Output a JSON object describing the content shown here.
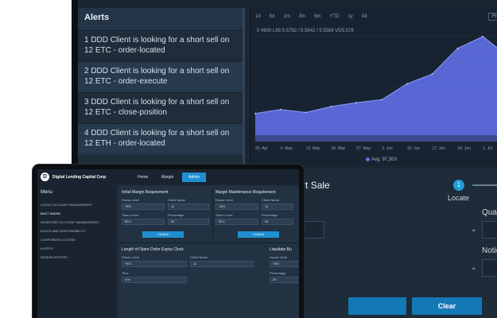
{
  "alerts": {
    "title": "Alerts",
    "items": [
      {
        "label": "1 DDD Client is looking for a short sell on 12 ETC - order-located"
      },
      {
        "label": "2 DDD Client is looking for a short sell on 12 ETC - order-execute"
      },
      {
        "label": "3 DDD Client is looking for a short sell on 12 ETC - close-position"
      },
      {
        "label": "4 DDD Client is looking for a short sell on 12 ETH - order-located"
      }
    ]
  },
  "chart": {
    "ranges": [
      "1d",
      "5d",
      "1m",
      "3m",
      "6m",
      "YTD",
      "1y",
      "All"
    ],
    "range_box": "From",
    "price_line": "0 4800 L98 5.5782 / 5.5642 / 5.5584 VD5.578",
    "legend": "Avg. 97,303",
    "x_ticks": [
      "25. Apr",
      "6. May",
      "13. May",
      "20. May",
      "27. May",
      "3. Jun",
      "10. Jun",
      "17. Jun",
      "24. Jun",
      "1. Jul",
      "8."
    ],
    "series_color": "#5f6fe6"
  },
  "chart_data": {
    "type": "area",
    "x": [
      "25. Apr",
      "6. May",
      "13. May",
      "20. May",
      "27. May",
      "3. Jun",
      "10. Jun",
      "17. Jun",
      "24. Jun",
      "1. Jul",
      "8."
    ],
    "series": [
      {
        "values": [
          22,
          26,
          23,
          29,
          33,
          36,
          52,
          62,
          88,
          100,
          80
        ]
      }
    ]
  },
  "execute": {
    "title": "Execute Short Sale",
    "step_number": "1",
    "step_label": "Locate",
    "quantity_label": "Quantity",
    "notional_label": "Notional",
    "execute_label": "",
    "clear_label": "Clear"
  },
  "laptop": {
    "logo_letter": "D",
    "brand": "Digital Lending Capital Corp",
    "tabs": [
      "Home",
      "Margin",
      "Admin"
    ],
    "menu_title": "Menu",
    "menu_items": [
      "CLIENT ACCOUNT MANAGEMENT",
      "BUCT ADMIN",
      "INVENTORY ACCOUNT MANAGEMENT",
      "ROLES AND RESPONSIBILITY",
      "CORPORATE ACTIONS",
      "ALERTS",
      "DESIGN HISTORY"
    ],
    "initial_margin": {
      "title": "Initial Margin Requirement",
      "house_level_label": "House Level",
      "house_level_value": "YES",
      "client_name_label": "Client Name",
      "client_name_value": "JJ",
      "token_level_label": "Token Level",
      "token_level_value": "BTC",
      "percentage_label": "Percentage",
      "percentage_value": "20",
      "confirm_label": "Confirm"
    },
    "maintenance_margin": {
      "title": "Margin Maintenance Requirement",
      "house_level_label": "House Level",
      "house_level_value": "YES",
      "client_name_label": "Client Name",
      "client_name_value": "JJ",
      "token_level_label": "Token Level",
      "token_level_value": "BTC",
      "percentage_label": "Percentage",
      "percentage_value": "30",
      "confirm_label": "Confirm"
    },
    "open_order": {
      "title": "Length of Open Order Expiry Clock",
      "house_level_label": "House Level",
      "house_level_value": "YES",
      "client_name_label": "Client Name",
      "client_name_value": "JJ",
      "time_label": "Time",
      "time_value": "4 hr"
    },
    "liquidate": {
      "title": "Liquidate Bu",
      "house_level_label": "House Level",
      "house_level_value": "YES",
      "percentage_label": "Percentage",
      "percentage_value": "20"
    }
  }
}
